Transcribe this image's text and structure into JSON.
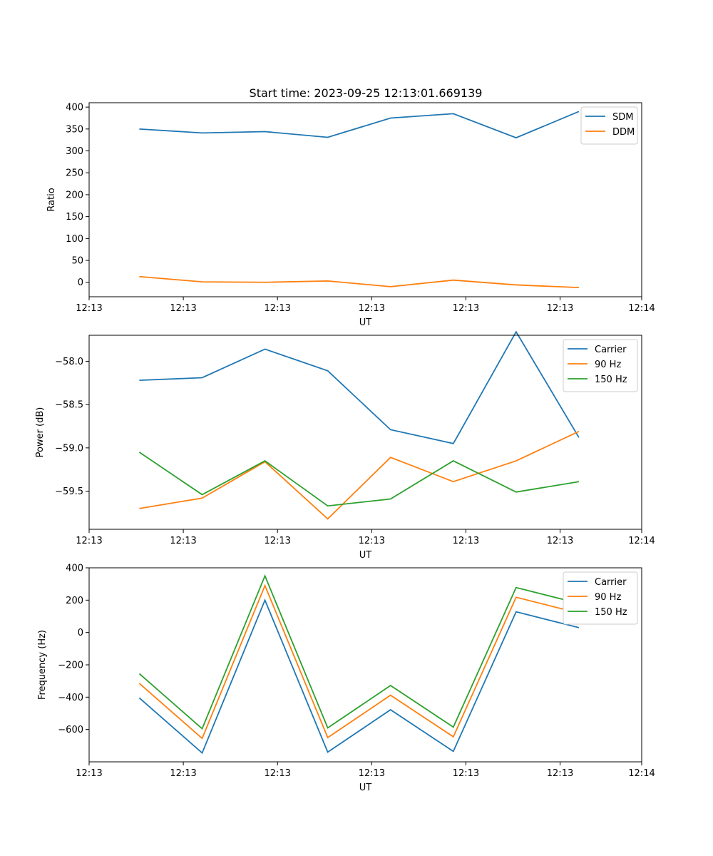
{
  "figure": {
    "title": "Start time: 2023-09-25 12:13:01.669139"
  },
  "chart_data": [
    {
      "type": "line",
      "title": "Start time: 2023-09-25 12:13:01.669139",
      "xlabel": "UT",
      "ylabel": "Ratio",
      "x": [
        1,
        2,
        3,
        4,
        5,
        6,
        7,
        8
      ],
      "xlim": [
        0.2,
        9.0
      ],
      "xticks": [
        0.2,
        1.7,
        3.2,
        4.7,
        6.2,
        7.7,
        9.0
      ],
      "xtick_labels": [
        "12:13",
        "12:13",
        "12:13",
        "12:13",
        "12:13",
        "12:13",
        "12:14"
      ],
      "ylim": [
        -33,
        410
      ],
      "yticks": [
        0,
        50,
        100,
        150,
        200,
        250,
        300,
        350,
        400
      ],
      "ytick_labels": [
        "0",
        "50",
        "100",
        "150",
        "200",
        "250",
        "300",
        "350",
        "400"
      ],
      "legend": "top-right",
      "series": [
        {
          "name": "SDM",
          "color": "#1f77b4",
          "values": [
            350,
            341,
            344,
            331,
            375,
            385,
            330,
            390
          ]
        },
        {
          "name": "DDM",
          "color": "#ff7f0e",
          "values": [
            13,
            1,
            0,
            3,
            -10,
            5,
            -6,
            -12
          ]
        }
      ]
    },
    {
      "type": "line",
      "title": "",
      "xlabel": "UT",
      "ylabel": "Power (dB)",
      "x": [
        1,
        2,
        3,
        4,
        5,
        6,
        7,
        8
      ],
      "xlim": [
        0.2,
        9.0
      ],
      "xticks": [
        0.2,
        1.7,
        3.2,
        4.7,
        6.2,
        7.7,
        9.0
      ],
      "xtick_labels": [
        "12:13",
        "12:13",
        "12:13",
        "12:13",
        "12:13",
        "12:13",
        "12:14"
      ],
      "ylim": [
        -59.94,
        -57.7
      ],
      "yticks": [
        -59.5,
        -59.0,
        -58.5,
        -58.0
      ],
      "ytick_labels": [
        "−59.5",
        "−59.0",
        "−58.5",
        "−58.0"
      ],
      "legend": "top-right",
      "series": [
        {
          "name": "Carrier",
          "color": "#1f77b4",
          "values": [
            -58.22,
            -58.19,
            -57.86,
            -58.11,
            -58.79,
            -58.95,
            -57.66,
            -58.88
          ]
        },
        {
          "name": "90 Hz",
          "color": "#ff7f0e",
          "values": [
            -59.7,
            -59.58,
            -59.16,
            -59.82,
            -59.11,
            -59.39,
            -59.15,
            -58.81
          ]
        },
        {
          "name": "150 Hz",
          "color": "#2ca02c",
          "values": [
            -59.05,
            -59.54,
            -59.15,
            -59.67,
            -59.59,
            -59.15,
            -59.51,
            -59.39
          ]
        }
      ]
    },
    {
      "type": "line",
      "title": "",
      "xlabel": "UT",
      "ylabel": "Frequency (Hz)",
      "x": [
        1,
        2,
        3,
        4,
        5,
        6,
        7,
        8
      ],
      "xlim": [
        0.2,
        9.0
      ],
      "xticks": [
        0.2,
        1.7,
        3.2,
        4.7,
        6.2,
        7.7,
        9.0
      ],
      "xtick_labels": [
        "12:13",
        "12:13",
        "12:13",
        "12:13",
        "12:13",
        "12:13",
        "12:14"
      ],
      "ylim": [
        -800,
        400
      ],
      "yticks": [
        -600,
        -400,
        -200,
        0,
        200,
        400
      ],
      "ytick_labels": [
        "−600",
        "−400",
        "−200",
        "0",
        "200",
        "400"
      ],
      "legend": "top-right",
      "series": [
        {
          "name": "Carrier",
          "color": "#1f77b4",
          "values": [
            -405,
            -745,
            200,
            -740,
            -478,
            -735,
            128,
            30
          ]
        },
        {
          "name": "90 Hz",
          "color": "#ff7f0e",
          "values": [
            -315,
            -655,
            290,
            -650,
            -388,
            -645,
            218,
            120
          ]
        },
        {
          "name": "150 Hz",
          "color": "#2ca02c",
          "values": [
            -255,
            -595,
            350,
            -590,
            -328,
            -585,
            278,
            180
          ]
        }
      ]
    }
  ]
}
